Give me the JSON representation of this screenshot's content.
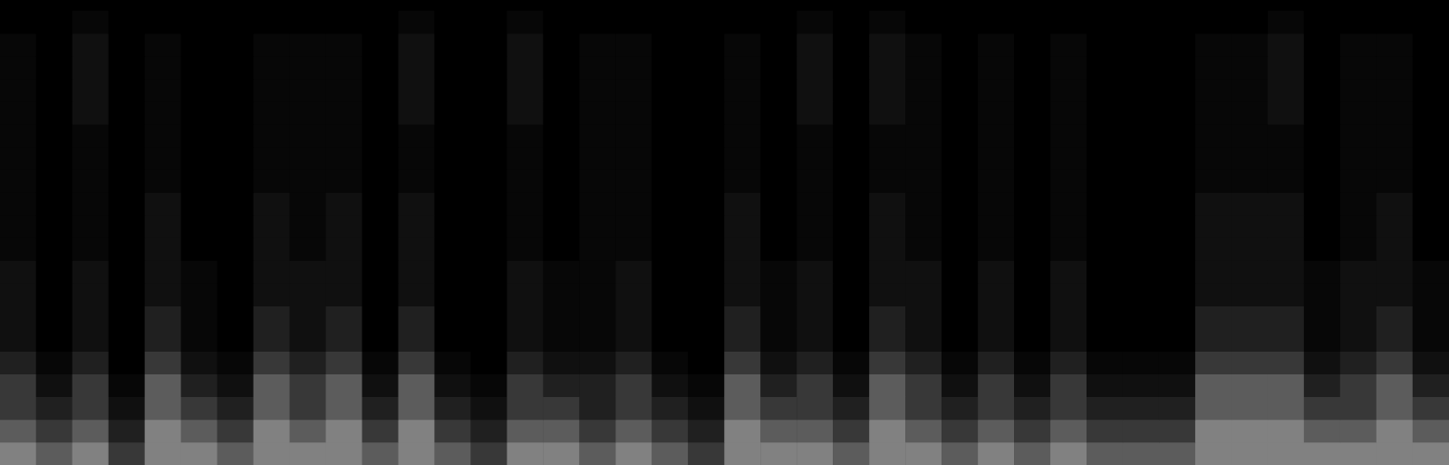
{
  "chart_data": {
    "type": "heatmap",
    "tick_labels": false,
    "grid": false,
    "zlim": [
      0,
      9
    ],
    "cells": [
      [
        6,
        5,
        6,
        4,
        6,
        6,
        5,
        6,
        6,
        6,
        5,
        6,
        5,
        4,
        6,
        6,
        5,
        6,
        5,
        4,
        6,
        6,
        6,
        5,
        6,
        6,
        5,
        6,
        5,
        6,
        5,
        5,
        5,
        6,
        6,
        6,
        6,
        6,
        6,
        6
      ],
      [
        5,
        4,
        5,
        3,
        6,
        5,
        4,
        6,
        5,
        6,
        4,
        6,
        4,
        3,
        5,
        5,
        4,
        5,
        4,
        3,
        6,
        5,
        5,
        4,
        6,
        5,
        4,
        5,
        4,
        5,
        4,
        4,
        4,
        6,
        6,
        6,
        5,
        5,
        6,
        5
      ],
      [
        4,
        3,
        4,
        2,
        5,
        4,
        3,
        5,
        4,
        5,
        3,
        5,
        3,
        2,
        4,
        4,
        3,
        4,
        3,
        2,
        5,
        4,
        4,
        3,
        5,
        4,
        3,
        4,
        3,
        4,
        3,
        3,
        3,
        5,
        5,
        5,
        4,
        4,
        5,
        4
      ],
      [
        4,
        2,
        4,
        1,
        5,
        3,
        2,
        5,
        4,
        5,
        2,
        5,
        2,
        1,
        4,
        3,
        3,
        4,
        2,
        1,
        5,
        3,
        4,
        2,
        5,
        4,
        2,
        4,
        2,
        4,
        2,
        2,
        2,
        5,
        5,
        5,
        3,
        4,
        5,
        3
      ],
      [
        3,
        1,
        3,
        0,
        4,
        2,
        1,
        4,
        3,
        4,
        1,
        4,
        1,
        0,
        3,
        2,
        2,
        3,
        1,
        0,
        4,
        2,
        3,
        1,
        4,
        3,
        1,
        3,
        1,
        3,
        1,
        1,
        1,
        4,
        4,
        4,
        2,
        3,
        4,
        2
      ],
      [
        2,
        0,
        2,
        0,
        3,
        1,
        0,
        3,
        2,
        3,
        0,
        3,
        0,
        0,
        2,
        1,
        1,
        2,
        0,
        0,
        3,
        1,
        2,
        0,
        3,
        2,
        0,
        2,
        0,
        2,
        0,
        0,
        0,
        3,
        3,
        3,
        1,
        2,
        3,
        1
      ],
      [
        2,
        0,
        2,
        0,
        3,
        1,
        0,
        3,
        2,
        3,
        0,
        3,
        0,
        0,
        2,
        1,
        1,
        2,
        0,
        0,
        3,
        1,
        2,
        0,
        3,
        2,
        0,
        2,
        0,
        2,
        0,
        0,
        0,
        3,
        3,
        3,
        1,
        2,
        3,
        1
      ],
      [
        2,
        0,
        2,
        0,
        2,
        1,
        0,
        2,
        2,
        2,
        0,
        2,
        0,
        0,
        2,
        1,
        1,
        2,
        0,
        0,
        2,
        1,
        2,
        0,
        2,
        2,
        0,
        2,
        0,
        2,
        0,
        0,
        0,
        2,
        2,
        2,
        1,
        2,
        2,
        1
      ],
      [
        2,
        0,
        2,
        0,
        2,
        1,
        0,
        2,
        2,
        2,
        0,
        2,
        0,
        0,
        2,
        1,
        1,
        2,
        0,
        0,
        2,
        1,
        2,
        0,
        2,
        2,
        0,
        2,
        0,
        2,
        0,
        0,
        0,
        2,
        2,
        2,
        1,
        2,
        2,
        1
      ],
      [
        1,
        0,
        1,
        0,
        2,
        0,
        0,
        2,
        1,
        2,
        0,
        2,
        0,
        0,
        1,
        0,
        1,
        1,
        0,
        0,
        2,
        0,
        1,
        0,
        2,
        1,
        0,
        1,
        0,
        1,
        0,
        0,
        0,
        2,
        2,
        2,
        0,
        1,
        2,
        0
      ],
      [
        1,
        0,
        1,
        0,
        2,
        0,
        0,
        2,
        1,
        2,
        0,
        2,
        0,
        0,
        1,
        0,
        1,
        1,
        0,
        0,
        2,
        0,
        1,
        0,
        2,
        1,
        0,
        1,
        0,
        1,
        0,
        0,
        0,
        2,
        2,
        2,
        0,
        1,
        2,
        0
      ],
      [
        1,
        0,
        1,
        0,
        2,
        0,
        0,
        2,
        1,
        2,
        0,
        2,
        0,
        0,
        1,
        0,
        1,
        1,
        0,
        0,
        2,
        0,
        1,
        0,
        2,
        1,
        0,
        1,
        0,
        1,
        0,
        0,
        0,
        2,
        2,
        2,
        0,
        1,
        2,
        0
      ],
      [
        1,
        0,
        1,
        0,
        1,
        0,
        0,
        1,
        1,
        1,
        0,
        1,
        0,
        0,
        1,
        0,
        1,
        1,
        0,
        0,
        1,
        0,
        1,
        0,
        1,
        1,
        0,
        1,
        0,
        1,
        0,
        0,
        0,
        1,
        1,
        1,
        0,
        1,
        1,
        0
      ],
      [
        1,
        0,
        1,
        0,
        1,
        0,
        0,
        1,
        1,
        1,
        0,
        1,
        0,
        0,
        1,
        0,
        1,
        1,
        0,
        0,
        1,
        0,
        1,
        0,
        1,
        1,
        0,
        1,
        0,
        1,
        0,
        0,
        0,
        1,
        1,
        1,
        0,
        1,
        1,
        0
      ],
      [
        1,
        0,
        1,
        0,
        1,
        0,
        0,
        1,
        1,
        1,
        0,
        1,
        0,
        0,
        1,
        0,
        1,
        1,
        0,
        0,
        1,
        0,
        1,
        0,
        1,
        1,
        0,
        1,
        0,
        1,
        0,
        0,
        0,
        1,
        1,
        1,
        0,
        1,
        1,
        0
      ],
      [
        1,
        0,
        2,
        0,
        1,
        0,
        0,
        1,
        1,
        1,
        0,
        2,
        0,
        0,
        2,
        0,
        1,
        1,
        0,
        0,
        1,
        0,
        2,
        0,
        2,
        1,
        0,
        1,
        0,
        1,
        0,
        0,
        0,
        1,
        1,
        2,
        0,
        1,
        1,
        0
      ],
      [
        1,
        0,
        2,
        0,
        1,
        0,
        0,
        1,
        1,
        1,
        0,
        2,
        0,
        0,
        2,
        0,
        1,
        1,
        0,
        0,
        1,
        0,
        2,
        0,
        2,
        1,
        0,
        1,
        0,
        1,
        0,
        0,
        0,
        1,
        1,
        2,
        0,
        1,
        1,
        0
      ],
      [
        1,
        0,
        2,
        0,
        1,
        0,
        0,
        1,
        1,
        1,
        0,
        2,
        0,
        0,
        2,
        0,
        1,
        1,
        0,
        0,
        1,
        0,
        2,
        0,
        2,
        1,
        0,
        1,
        0,
        1,
        0,
        0,
        0,
        1,
        1,
        2,
        0,
        1,
        1,
        0
      ],
      [
        1,
        0,
        2,
        0,
        1,
        0,
        0,
        1,
        1,
        1,
        0,
        2,
        0,
        0,
        2,
        0,
        1,
        1,
        0,
        0,
        1,
        0,
        2,
        0,
        2,
        1,
        0,
        1,
        0,
        1,
        0,
        0,
        0,
        1,
        1,
        2,
        0,
        1,
        1,
        0
      ],
      [
        0,
        0,
        1,
        0,
        0,
        0,
        0,
        0,
        0,
        0,
        0,
        1,
        0,
        0,
        1,
        0,
        0,
        0,
        0,
        0,
        0,
        0,
        1,
        0,
        1,
        0,
        0,
        0,
        0,
        0,
        0,
        0,
        0,
        0,
        0,
        1,
        0,
        0,
        0,
        0
      ]
    ]
  }
}
